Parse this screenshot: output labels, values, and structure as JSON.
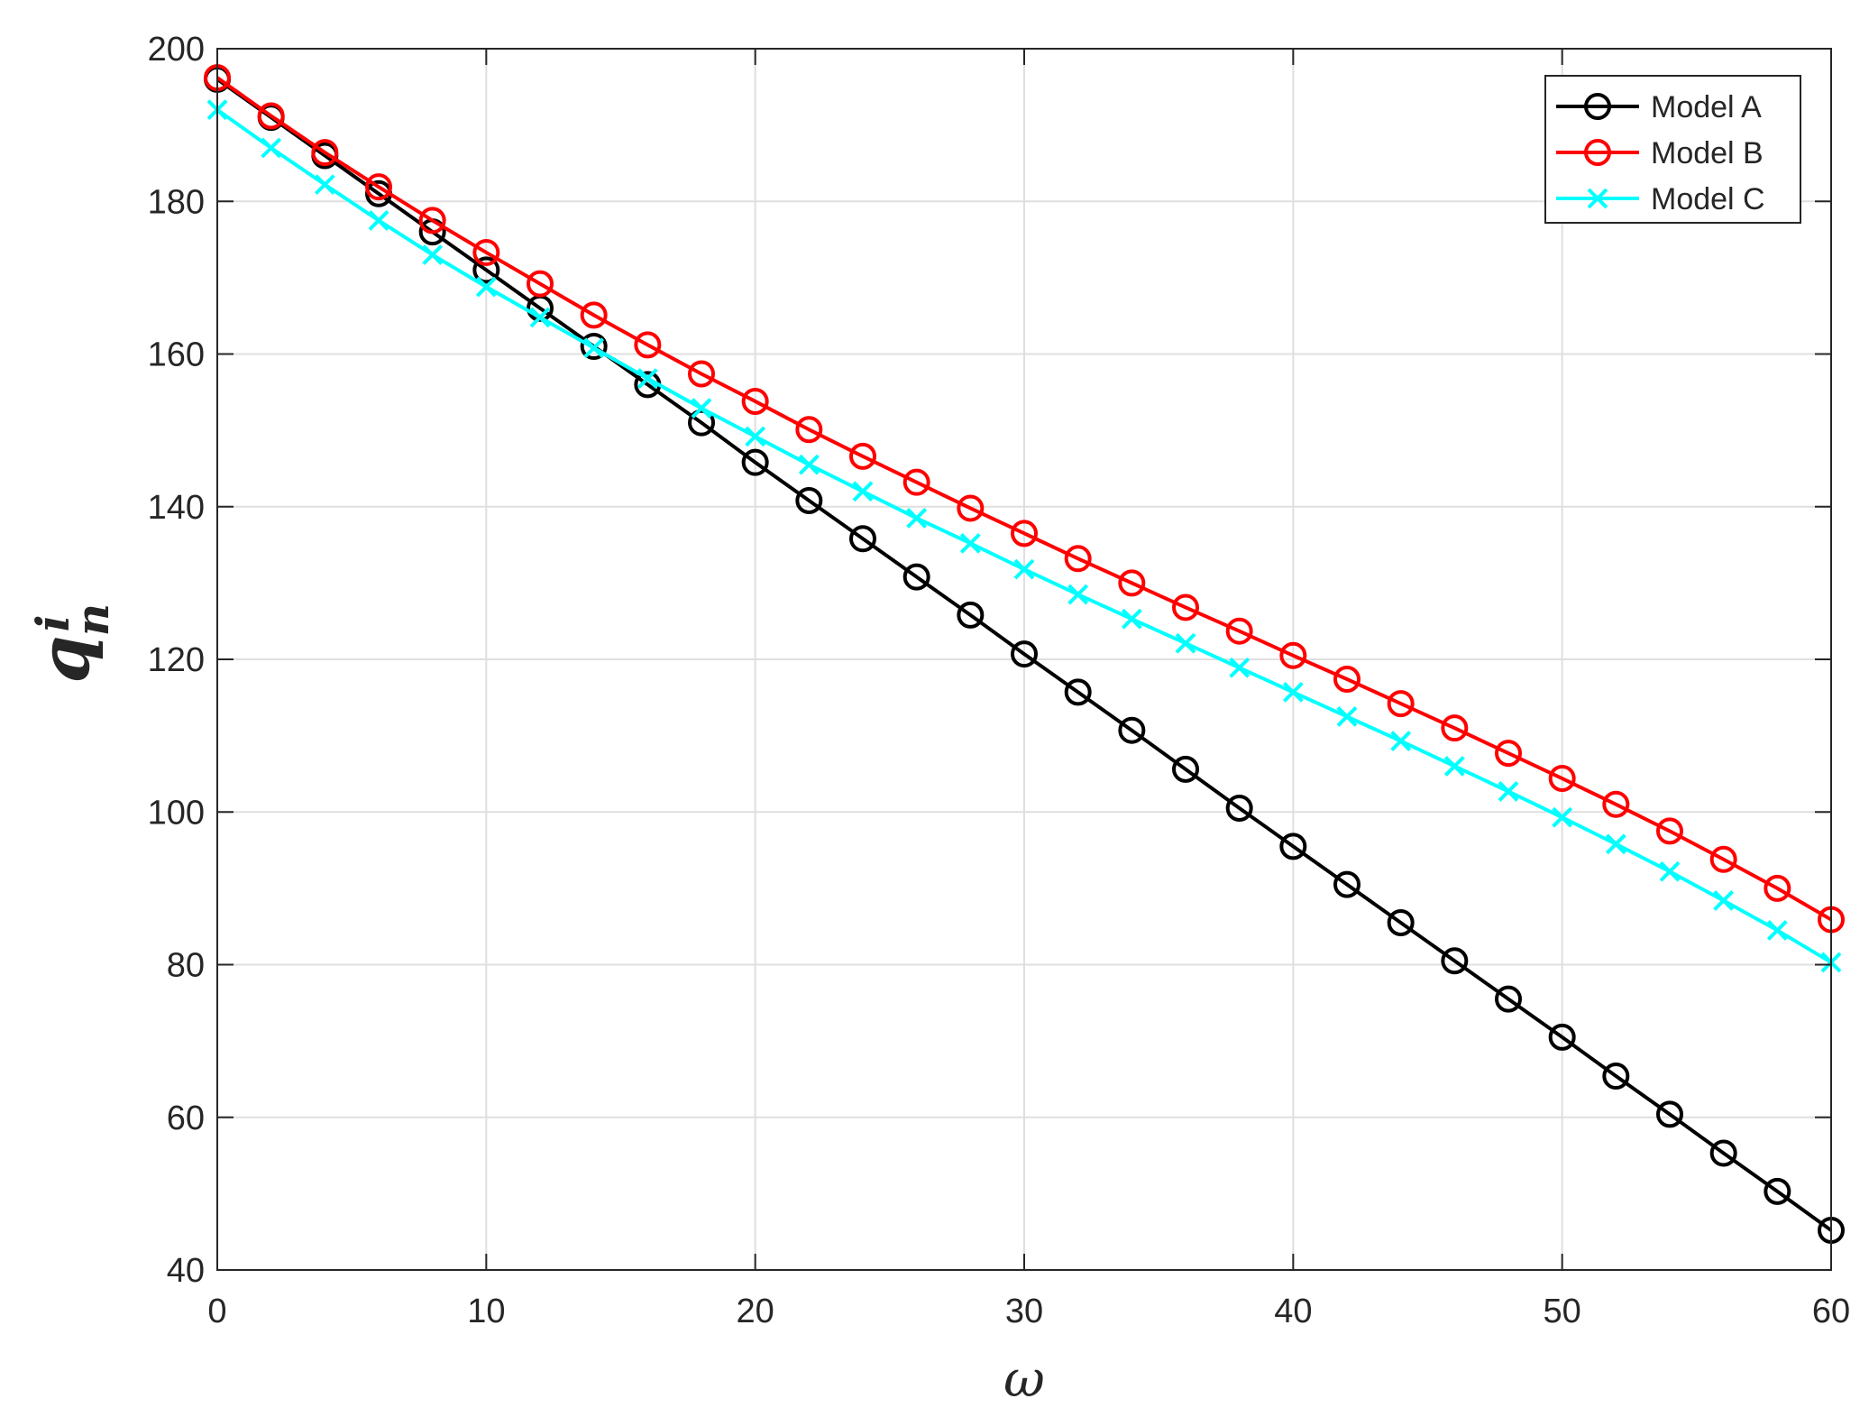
{
  "chart_data": {
    "type": "line",
    "xlabel": "ω",
    "ylabel": {
      "base": "q",
      "superscript": "i",
      "subscript": "n"
    },
    "xlim": [
      0,
      60
    ],
    "ylim": [
      40,
      200
    ],
    "xticks": [
      0,
      10,
      20,
      30,
      40,
      50,
      60
    ],
    "yticks": [
      40,
      60,
      80,
      100,
      120,
      140,
      160,
      180,
      200
    ],
    "grid": true,
    "legend_position": "top-right",
    "x": [
      0,
      2,
      4,
      6,
      8,
      10,
      12,
      14,
      16,
      18,
      20,
      22,
      24,
      26,
      28,
      30,
      32,
      34,
      36,
      38,
      40,
      42,
      44,
      46,
      48,
      50,
      52,
      54,
      56,
      58,
      60
    ],
    "series": [
      {
        "name": "Model A",
        "color": "#000000",
        "marker": "circle",
        "values": [
          196,
          191,
          186,
          181,
          176,
          171,
          166,
          161,
          156,
          151,
          145.8,
          140.8,
          135.8,
          130.8,
          125.8,
          120.7,
          115.7,
          110.7,
          105.6,
          100.5,
          95.5,
          90.5,
          85.5,
          80.5,
          75.5,
          70.5,
          65.4,
          60.4,
          55.3,
          50.3,
          45.2
        ]
      },
      {
        "name": "Model B",
        "color": "#ff0000",
        "marker": "circle",
        "values": [
          196.2,
          191.2,
          186.4,
          181.9,
          177.5,
          173.3,
          169.2,
          165.1,
          161.2,
          157.4,
          153.8,
          150.1,
          146.6,
          143.2,
          139.8,
          136.5,
          133.2,
          130,
          126.8,
          123.7,
          120.5,
          117.4,
          114.2,
          111,
          107.7,
          104.4,
          101,
          97.5,
          93.8,
          90,
          85.9
        ]
      },
      {
        "name": "Model C",
        "color": "#00ffff",
        "marker": "x",
        "values": [
          192,
          187,
          182.2,
          177.5,
          173,
          168.8,
          164.8,
          160.8,
          156.8,
          152.9,
          149.2,
          145.5,
          142,
          138.5,
          135.2,
          131.8,
          128.5,
          125.3,
          122.1,
          118.9,
          115.7,
          112.5,
          109.3,
          106,
          102.7,
          99.3,
          95.8,
          92.2,
          88.4,
          84.5,
          80.3
        ]
      }
    ]
  }
}
